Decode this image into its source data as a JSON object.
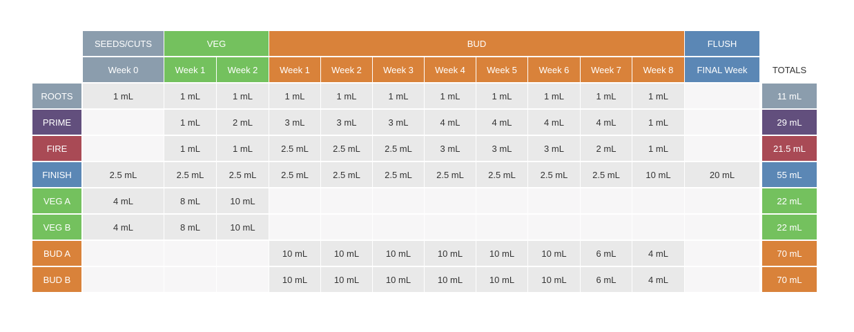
{
  "groups": [
    {
      "label": "SEEDS/CUTS",
      "color": "#8b9dad"
    },
    {
      "label": "VEG",
      "color": "#74c15e"
    },
    {
      "label": "BUD",
      "color": "#d9823a"
    },
    {
      "label": "FLUSH",
      "color": "#5b87b5"
    }
  ],
  "columns": [
    {
      "label": "Week 0",
      "group": 0
    },
    {
      "label": "Week 1",
      "group": 1
    },
    {
      "label": "Week 2",
      "group": 1
    },
    {
      "label": "Week 1",
      "group": 2
    },
    {
      "label": "Week 2",
      "group": 2
    },
    {
      "label": "Week 3",
      "group": 2
    },
    {
      "label": "Week 4",
      "group": 2
    },
    {
      "label": "Week 5",
      "group": 2
    },
    {
      "label": "Week 6",
      "group": 2
    },
    {
      "label": "Week 7",
      "group": 2
    },
    {
      "label": "Week 8",
      "group": 2
    },
    {
      "label": "FINAL Week",
      "group": 3
    }
  ],
  "totals_header": "TOTALS",
  "rows": [
    {
      "name": "ROOTS",
      "color": "#8b9dad",
      "values": [
        "1 mL",
        "1 mL",
        "1 mL",
        "1 mL",
        "1 mL",
        "1 mL",
        "1 mL",
        "1 mL",
        "1 mL",
        "1 mL",
        "1 mL",
        ""
      ],
      "total": "11 mL"
    },
    {
      "name": "PRIME",
      "color": "#624f7d",
      "values": [
        "",
        "1 mL",
        "2 mL",
        "3 mL",
        "3 mL",
        "3 mL",
        "4 mL",
        "4 mL",
        "4 mL",
        "4 mL",
        "1 mL",
        ""
      ],
      "total": "29 mL"
    },
    {
      "name": "FIRE",
      "color": "#a94a55",
      "values": [
        "",
        "1 mL",
        "1 mL",
        "2.5 mL",
        "2.5 mL",
        "2.5 mL",
        "3 mL",
        "3 mL",
        "3 mL",
        "2 mL",
        "1 mL",
        ""
      ],
      "total": "21.5 mL"
    },
    {
      "name": "FINISH",
      "color": "#5b87b5",
      "values": [
        "2.5 mL",
        "2.5 mL",
        "2.5 mL",
        "2.5 mL",
        "2.5 mL",
        "2.5 mL",
        "2.5 mL",
        "2.5 mL",
        "2.5 mL",
        "2.5 mL",
        "10 mL",
        "20 mL"
      ],
      "total": "55 mL"
    },
    {
      "name": "VEG A",
      "color": "#74c15e",
      "values": [
        "4 mL",
        "8 mL",
        "10 mL",
        "",
        "",
        "",
        "",
        "",
        "",
        "",
        "",
        ""
      ],
      "total": "22 mL"
    },
    {
      "name": "VEG B",
      "color": "#74c15e",
      "values": [
        "4 mL",
        "8 mL",
        "10 mL",
        "",
        "",
        "",
        "",
        "",
        "",
        "",
        "",
        ""
      ],
      "total": "22 mL"
    },
    {
      "name": "BUD A",
      "color": "#d9823a",
      "values": [
        "",
        "",
        "",
        "10 mL",
        "10 mL",
        "10 mL",
        "10 mL",
        "10 mL",
        "10 mL",
        "6 mL",
        "4 mL",
        ""
      ],
      "total": "70 mL"
    },
    {
      "name": "BUD B",
      "color": "#d9823a",
      "values": [
        "",
        "",
        "",
        "10 mL",
        "10 mL",
        "10 mL",
        "10 mL",
        "10 mL",
        "10 mL",
        "6 mL",
        "4 mL",
        ""
      ],
      "total": "70 mL"
    }
  ]
}
